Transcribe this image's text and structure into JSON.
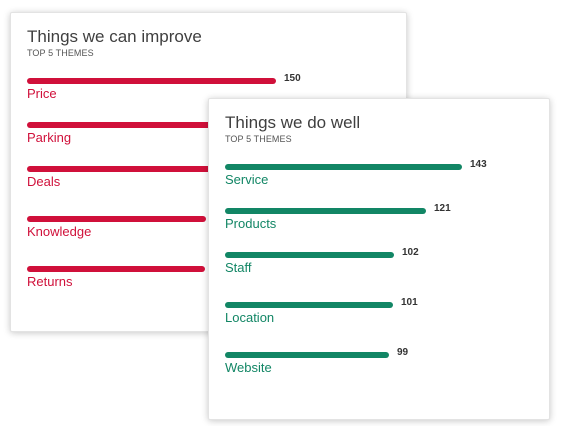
{
  "colors": {
    "improve": "#d0103a",
    "well": "#128665"
  },
  "improve_card": {
    "title": "Things we can improve",
    "subtitle": "TOP 5 THEMES",
    "themes": [
      {
        "label": "Price",
        "value": "150"
      },
      {
        "label": "Parking",
        "value": ""
      },
      {
        "label": "Deals",
        "value": "112"
      },
      {
        "label": "Knowledge",
        "value": "108"
      },
      {
        "label": "Returns",
        "value": "107"
      }
    ]
  },
  "well_card": {
    "title": "Things we do well",
    "subtitle": "TOP 5 THEMES",
    "themes": [
      {
        "label": "Service",
        "value": "143"
      },
      {
        "label": "Products",
        "value": "121"
      },
      {
        "label": "Staff",
        "value": "102"
      },
      {
        "label": "Location",
        "value": "101"
      },
      {
        "label": "Website",
        "value": "99"
      }
    ]
  }
}
